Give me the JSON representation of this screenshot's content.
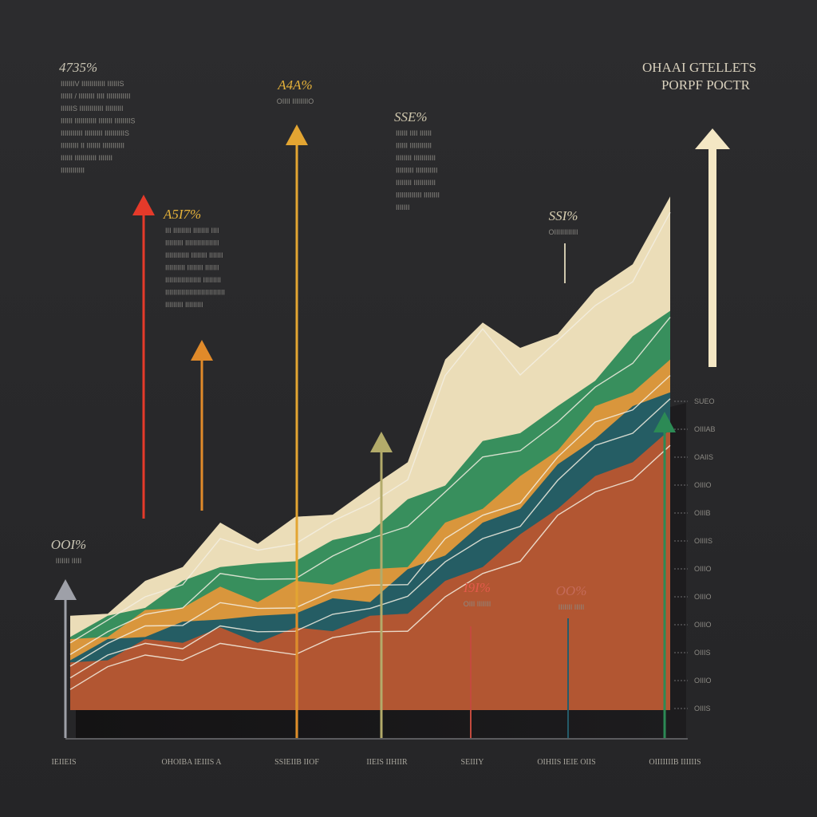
{
  "title": [
    "OHAAI GTELLETS",
    "PORPF POCTR"
  ],
  "chart_data": {
    "type": "area",
    "x_labels": [
      "IEIIEIS",
      "OHOIBA IEIIIS A",
      "SSIEIIB IIOF",
      "IIEIS IIHIIR",
      "SEIIIY",
      "OIHIIS IEIE OIIS",
      "OIIIIIIIB IIIIIIS"
    ],
    "y_ticks": [
      "SUEO",
      "OIIIAB",
      "OAIIS",
      "OIIIO",
      "OIIIB",
      "OIIIIS",
      "OIIIO",
      "OIIIO",
      "OIIIO",
      "OIIIS",
      "OIIIO",
      "OIIIS"
    ],
    "callouts": [
      {
        "value": "4735%",
        "lines": [
          "IIIIIIIV IIIIIIIIIIII IIIIIIS",
          "IIIIII / IIIIIIII IIII IIIIIIIIIIII",
          "IIIIIIS IIIIIIIIIIII IIIIIIIII",
          "IIIIII IIIIIIIIIII IIIIIII IIIIIIIIS",
          "IIIIIIIIIII IIIIIIIII IIIIIIIIIIS",
          "IIIIIIIII II IIIIIII IIIIIIIIIII",
          "IIIIII IIIIIIIIIII IIIIIII",
          "IIIIIIIIIIII"
        ],
        "color": "#c9c4b3"
      },
      {
        "value": "A4A%",
        "lines": [
          "OIIII IIIIIIIIO"
        ],
        "color": "#e6b23a"
      },
      {
        "value": "SSE%",
        "lines": [
          "IIIIII IIII IIIIII",
          "IIIIII IIIIIIIIIII",
          "IIIIIIII IIIIIIIIIII",
          "IIIIIIIII IIIIIIIIIII",
          "IIIIIIII IIIIIIIIIII",
          "IIIIIIIIIIIII IIIIIIII",
          "IIIIIII"
        ],
        "color": "#cfc7ad"
      },
      {
        "value": "A5I7%",
        "lines": [
          "III IIIIIIIII IIIIIIII IIII",
          "IIIIIIIII IIIIIIIIIIIIIIIII",
          "IIIIIIIIIIII IIIIIIII IIIIIII",
          "IIIIIIIIII IIIIIIII IIIIIII",
          "IIIIIIIIIIIIIIIIII IIIIIIIII",
          "IIIIIIIIIIIIIIIIIIIIIIIIIIIIII",
          "IIIIIIIII IIIIIIIII"
        ],
        "color": "#e6b23a"
      },
      {
        "value": "SSI%",
        "lines": [
          "OIIIIIIIIIIII"
        ],
        "color": "#d8cfb2"
      },
      {
        "value": "OOI%",
        "lines": [
          "IIIIIII IIIII"
        ],
        "color": "#c9c4b3"
      },
      {
        "value": "I9I%",
        "lines": [
          "OIII IIIIIII"
        ],
        "color": "#e25a4a"
      },
      {
        "value": "OO%",
        "lines": [
          "IIIIIII IIIII"
        ],
        "color": "#c56b5a"
      }
    ],
    "series": [
      {
        "name": "",
        "color": "#f5e7c0",
        "values": [
          14,
          16,
          20,
          24,
          30,
          28,
          31,
          33,
          36,
          42,
          58,
          66,
          60,
          64,
          70,
          76,
          86
        ]
      },
      {
        "name": "",
        "color": "#2e8a57",
        "values": [
          12,
          14,
          17,
          20,
          24,
          23,
          25,
          27,
          30,
          34,
          38,
          44,
          47,
          50,
          56,
          62,
          68
        ]
      },
      {
        "name": "",
        "color": "#e1973a",
        "values": [
          10,
          12,
          15,
          17,
          19,
          18,
          20,
          21,
          22,
          24,
          30,
          34,
          38,
          44,
          50,
          54,
          58
        ]
      },
      {
        "name": "",
        "color": "#1b5a66",
        "values": [
          8,
          10,
          12,
          13,
          15,
          14,
          16,
          17,
          18,
          22,
          26,
          30,
          34,
          40,
          46,
          50,
          54
        ]
      },
      {
        "name": "",
        "color": "#b9552f",
        "values": [
          6,
          8,
          10,
          11,
          12,
          11,
          12,
          13,
          14,
          16,
          20,
          24,
          28,
          34,
          38,
          42,
          46
        ]
      }
    ],
    "arrows": [
      {
        "color": "#e53a2a"
      },
      {
        "color": "#e08a2a"
      },
      {
        "color": "#e3a532"
      },
      {
        "color": "#b3ab6a"
      },
      {
        "color": "#9ea0a8"
      },
      {
        "color": "#2c8a55"
      },
      {
        "color": "#f4e7c4"
      }
    ],
    "xlim": [
      0,
      16
    ],
    "ylim": [
      0,
      100
    ],
    "grid": false
  }
}
